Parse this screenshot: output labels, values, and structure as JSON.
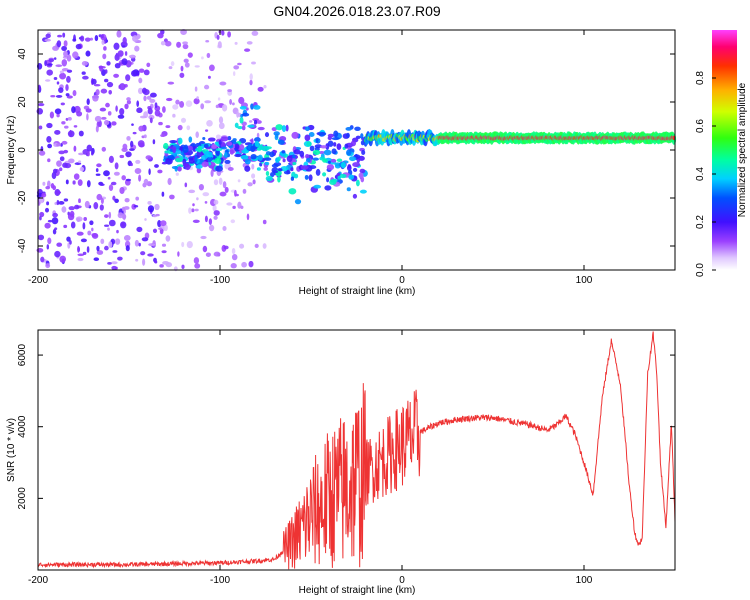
{
  "title": "GN04.2026.018.23.07.R09",
  "chart_data": [
    {
      "type": "heatmap",
      "title": "GN04.2026.018.23.07.R09",
      "xlabel": "Height of straight line (km)",
      "ylabel": "Frequency (Hz)",
      "xlim": [
        -200,
        150
      ],
      "ylim": [
        -50,
        50
      ],
      "xticks": [
        -200,
        -100,
        0,
        100
      ],
      "yticks": [
        -40,
        -20,
        0,
        20,
        40
      ],
      "colorbar": {
        "label": "Normalized spectral amplitude",
        "range": [
          0,
          1
        ],
        "ticks": [
          "0.0",
          "0.2",
          "0.4",
          "0.6",
          "0.8"
        ]
      },
      "features": [
        {
          "name": "noise-region",
          "x_range": [
            -200,
            -75
          ],
          "freq_range": [
            -50,
            50
          ]
        },
        {
          "name": "multipath-region",
          "x_range": [
            -130,
            -20
          ],
          "freq_range": [
            -30,
            20
          ]
        },
        {
          "name": "main-carrier",
          "x_range": [
            -20,
            150
          ],
          "freq_center": 5,
          "amplitude": 0.9
        }
      ]
    },
    {
      "type": "line",
      "xlabel": "Height of straight line (km)",
      "ylabel": "SNR (10 * v/v)",
      "xlim": [
        -200,
        150
      ],
      "ylim": [
        0,
        6700
      ],
      "xticks": [
        -200,
        -100,
        0,
        100
      ],
      "yticks": [
        2000,
        4000,
        6000
      ],
      "color": "#ee3333",
      "x": [
        -200,
        -150,
        -100,
        -80,
        -70,
        -60,
        -50,
        -40,
        -30,
        -20,
        -10,
        0,
        10,
        20,
        30,
        40,
        50,
        60,
        70,
        80,
        85,
        90,
        95,
        100,
        105,
        110,
        115,
        120,
        125,
        128,
        130,
        132,
        135,
        138,
        140,
        142,
        145,
        148,
        150
      ],
      "y": [
        150,
        150,
        200,
        250,
        300,
        800,
        1500,
        2000,
        2300,
        2700,
        3100,
        3500,
        3850,
        4100,
        4200,
        4250,
        4250,
        4150,
        4050,
        3900,
        4050,
        4300,
        3800,
        3000,
        2100,
        4800,
        6400,
        5200,
        2300,
        1000,
        700,
        900,
        5500,
        6600,
        5500,
        3000,
        1200,
        4100,
        1400
      ]
    }
  ]
}
